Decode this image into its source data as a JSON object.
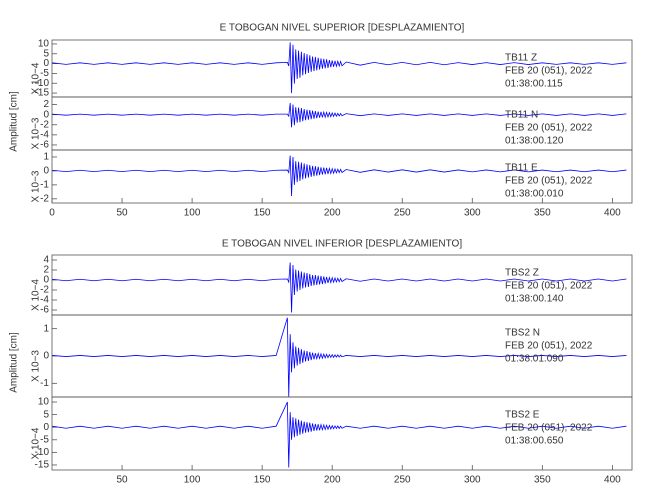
{
  "chart_data": [
    {
      "type": "line",
      "title": "E TOBOGAN NIVEL SUPERIOR [DESPLAZAMIENTO]",
      "ylabel": "Amplitud [cm]",
      "xlim": [
        0,
        414
      ],
      "xticks": [
        0,
        50,
        100,
        150,
        200,
        250,
        300,
        350,
        400
      ],
      "x": [
        0,
        10,
        20,
        30,
        40,
        50,
        60,
        70,
        80,
        90,
        100,
        110,
        120,
        130,
        140,
        150,
        160,
        168,
        169,
        170,
        171,
        172,
        173,
        174,
        175,
        176,
        177,
        178,
        179,
        180,
        181,
        182,
        183,
        184,
        185,
        186,
        187,
        188,
        189,
        190,
        191,
        192,
        193,
        194,
        195,
        196,
        197,
        198,
        199,
        200,
        201,
        202,
        203,
        204,
        205,
        206,
        207,
        210,
        220,
        230,
        240,
        250,
        260,
        270,
        280,
        290,
        300,
        310,
        320,
        330,
        340,
        350,
        360,
        370,
        380,
        390,
        400,
        410
      ],
      "panels": [
        {
          "scale": "X 10−4",
          "ylim": [
            -17,
            12
          ],
          "yticks": [
            10,
            5,
            0,
            -5,
            -10,
            -15
          ],
          "color": "#0000ff",
          "annotation": [
            "TB11    Z",
            "FEB 20 (051), 2022",
            "01:38:00.115"
          ],
          "values": [
            0.4,
            -0.4,
            0.4,
            -0.4,
            0.4,
            -0.4,
            0.4,
            -0.4,
            0.4,
            -0.4,
            0.4,
            -0.4,
            0.4,
            -0.4,
            0.4,
            -0.4,
            0.4,
            0.6,
            -1.2,
            10.8,
            -15,
            9.6,
            -10.2,
            7.2,
            -7.8,
            6.6,
            -7.2,
            6,
            -6,
            5.4,
            -5.4,
            4.8,
            -4.8,
            4.2,
            -4.2,
            3.6,
            -3.8,
            3.4,
            -3.4,
            3,
            -3,
            2.6,
            -2.6,
            2.4,
            -2.4,
            2.2,
            -2.2,
            1.8,
            -1.8,
            1.6,
            -1.6,
            1.4,
            -1.4,
            1.2,
            -1.2,
            1.1,
            -1.1,
            0.8,
            -0.8,
            0.6,
            -0.6,
            0.6,
            -0.6,
            0.6,
            -0.6,
            0.5,
            -0.5,
            0.5,
            -0.5,
            0.5,
            -0.5,
            0.4,
            -0.4,
            0.4,
            -0.4,
            0.4,
            -0.4,
            0.4
          ]
        },
        {
          "scale": "X 10−3",
          "ylim": [
            -7,
            3.5
          ],
          "yticks": [
            2,
            0,
            -2,
            -4,
            -6
          ],
          "color": "#0000ff",
          "annotation": [
            "TB11    N",
            "FEB 20 (051), 2022",
            "01:38:00.120"
          ],
          "values": [
            0.1,
            -0.1,
            0.1,
            -0.1,
            0.1,
            -0.1,
            0.1,
            -0.1,
            0.1,
            -0.1,
            0.1,
            -0.1,
            0.1,
            -0.1,
            0.1,
            -0.1,
            0.1,
            0.1,
            -0.3,
            2.3,
            -2.5,
            2,
            -2.1,
            1.5,
            -1.6,
            1.4,
            -1.5,
            1.3,
            -1.3,
            1.1,
            -1.1,
            1,
            -1,
            0.9,
            -0.9,
            0.8,
            -0.8,
            0.7,
            -0.7,
            0.6,
            -0.6,
            0.55,
            -0.55,
            0.5,
            -0.5,
            0.45,
            -0.45,
            0.4,
            -0.4,
            0.33,
            -0.33,
            0.3,
            -0.3,
            0.25,
            -0.25,
            0.22,
            -0.22,
            0.2,
            -0.2,
            0.15,
            -0.15,
            0.15,
            -0.15,
            0.15,
            -0.15,
            0.15,
            -0.15,
            0.15,
            -0.15,
            0.15,
            -0.15,
            0.15,
            -0.15,
            0.15,
            -0.15,
            0.15,
            -0.15,
            0.15
          ]
        },
        {
          "scale": "X 10−3",
          "ylim": [
            -2.3,
            1.5
          ],
          "yticks": [
            1,
            0,
            -1,
            -2
          ],
          "color": "#0000ff",
          "annotation": [
            "TB11    E",
            "FEB 20 (051), 2022",
            "01:38:00.010"
          ],
          "values": [
            0.05,
            -0.05,
            0.05,
            -0.05,
            0.05,
            -0.05,
            0.05,
            -0.05,
            0.05,
            -0.05,
            0.05,
            -0.05,
            0.05,
            -0.05,
            0.05,
            -0.05,
            0.05,
            0.06,
            -0.12,
            1.1,
            -1.8,
            1,
            -1,
            0.7,
            -0.8,
            0.66,
            -0.72,
            0.6,
            -0.6,
            0.54,
            -0.54,
            0.48,
            -0.48,
            0.42,
            -0.42,
            0.36,
            -0.38,
            0.34,
            -0.34,
            0.3,
            -0.3,
            0.26,
            -0.26,
            0.24,
            -0.24,
            0.22,
            -0.22,
            0.18,
            -0.18,
            0.16,
            -0.16,
            0.14,
            -0.14,
            0.12,
            -0.12,
            0.11,
            -0.11,
            0.1,
            -0.1,
            0.08,
            -0.08,
            0.08,
            -0.08,
            0.08,
            -0.08,
            0.07,
            -0.07,
            0.07,
            -0.07,
            0.07,
            -0.07,
            0.06,
            -0.06,
            0.06,
            -0.06,
            0.06,
            -0.06,
            0.06
          ]
        }
      ]
    },
    {
      "type": "line",
      "title": "E TOBOGAN NIVEL INFERIOR [DESPLAZAMIENTO]",
      "ylabel": "Amplitud [cm]",
      "xlim": [
        0,
        414
      ],
      "xticks": [
        50,
        100,
        150,
        200,
        250,
        300,
        350,
        400
      ],
      "x": [
        0,
        10,
        20,
        30,
        40,
        50,
        60,
        70,
        80,
        90,
        100,
        110,
        120,
        130,
        140,
        150,
        160,
        168,
        169,
        170,
        171,
        172,
        173,
        174,
        175,
        176,
        177,
        178,
        179,
        180,
        181,
        182,
        183,
        184,
        185,
        186,
        187,
        188,
        189,
        190,
        191,
        192,
        193,
        194,
        195,
        196,
        197,
        198,
        199,
        200,
        201,
        202,
        203,
        204,
        205,
        206,
        207,
        210,
        220,
        230,
        240,
        250,
        260,
        270,
        280,
        290,
        300,
        310,
        320,
        330,
        340,
        350,
        360,
        370,
        380,
        390,
        400,
        410
      ],
      "panels": [
        {
          "scale": "X 10−4",
          "ylim": [
            -7,
            5
          ],
          "yticks": [
            4,
            2,
            0,
            -2,
            -4,
            -6
          ],
          "color": "#0000ff",
          "annotation": [
            "TBS2    Z",
            "FEB 20 (051), 2022",
            "01:38:00.140"
          ],
          "values": [
            0.15,
            -0.15,
            0.15,
            -0.15,
            0.15,
            -0.15,
            0.15,
            -0.15,
            0.15,
            -0.15,
            0.15,
            -0.15,
            0.15,
            -0.15,
            0.15,
            -0.15,
            0.15,
            0.2,
            -0.4,
            3.5,
            -6.5,
            3,
            -3,
            2.1,
            -2.3,
            1.9,
            -2,
            1.7,
            -1.7,
            1.5,
            -1.5,
            1.4,
            -1.4,
            1.2,
            -1.2,
            1,
            -1.1,
            1,
            -1,
            0.9,
            -0.9,
            0.8,
            -0.8,
            0.7,
            -0.7,
            0.6,
            -0.6,
            0.5,
            -0.5,
            0.45,
            -0.45,
            0.4,
            -0.4,
            0.35,
            -0.35,
            0.3,
            -0.3,
            0.25,
            -0.25,
            0.2,
            -0.2,
            0.2,
            -0.2,
            0.2,
            -0.2,
            0.2,
            -0.2,
            0.2,
            -0.2,
            0.2,
            -0.2,
            0.2,
            -0.2,
            0.2,
            -0.2,
            0.2,
            -0.2,
            0.2
          ]
        },
        {
          "scale": "X 10−3",
          "ylim": [
            -1.5,
            1.5
          ],
          "yticks": [
            1,
            0,
            -1
          ],
          "color": "#0000ff",
          "annotation": [
            "TBS2    N",
            "FEB 20 (051), 2022",
            "01:38:01.090"
          ],
          "values": [
            0.02,
            -0.02,
            0.02,
            -0.02,
            0.02,
            -0.02,
            0.02,
            -0.02,
            0.02,
            -0.02,
            0.02,
            -0.02,
            0.02,
            -0.02,
            0.02,
            -0.02,
            0.02,
            1.4,
            -1.5,
            0.8,
            -0.6,
            0.5,
            -0.45,
            0.35,
            -0.35,
            0.3,
            -0.3,
            0.25,
            -0.25,
            0.2,
            -0.2,
            0.18,
            -0.18,
            0.15,
            -0.15,
            0.12,
            -0.12,
            0.1,
            -0.1,
            0.09,
            -0.09,
            0.08,
            -0.08,
            0.07,
            -0.07,
            0.06,
            -0.06,
            0.05,
            -0.05,
            0.05,
            -0.05,
            0.04,
            -0.04,
            0.04,
            -0.04,
            0.03,
            -0.03,
            0.02,
            -0.02,
            0.02,
            -0.02,
            0.02,
            -0.02,
            0.02,
            -0.02,
            0.02,
            -0.02,
            0.02,
            -0.02,
            0.02,
            -0.02,
            0.02,
            -0.02,
            0.02,
            -0.02,
            0.02,
            -0.02,
            0.02
          ]
        },
        {
          "scale": "X 10−4",
          "ylim": [
            -17,
            12
          ],
          "yticks": [
            10,
            5,
            0,
            -5,
            -10,
            -15
          ],
          "color": "#0000ff",
          "annotation": [
            "TBS2    E",
            "FEB 20 (051), 2022",
            "01:38:00.650"
          ],
          "values": [
            0.4,
            -0.4,
            0.4,
            -0.4,
            0.4,
            -0.4,
            0.4,
            -0.4,
            0.4,
            -0.4,
            0.4,
            -0.4,
            0.4,
            -0.4,
            0.4,
            -0.4,
            0.4,
            10,
            -16,
            6,
            -5,
            4,
            -4,
            3.5,
            -3.5,
            3,
            -3,
            2.6,
            -2.6,
            2.2,
            -2.2,
            2,
            -2,
            1.8,
            -1.8,
            1.5,
            -1.5,
            1.3,
            -1.3,
            1.2,
            -1.2,
            1,
            -1,
            0.9,
            -0.9,
            0.8,
            -0.8,
            0.7,
            -0.7,
            0.6,
            -0.6,
            0.5,
            -0.5,
            0.5,
            -0.5,
            0.4,
            -0.4,
            0.4,
            -0.4,
            0.4,
            -0.4,
            0.4,
            -0.4,
            0.4,
            -0.4,
            0.4,
            -0.4,
            0.4,
            -0.4,
            0.4,
            -0.4,
            0.4,
            -0.4,
            0.4,
            -0.4,
            0.4,
            -0.4,
            0.4
          ]
        }
      ]
    }
  ]
}
